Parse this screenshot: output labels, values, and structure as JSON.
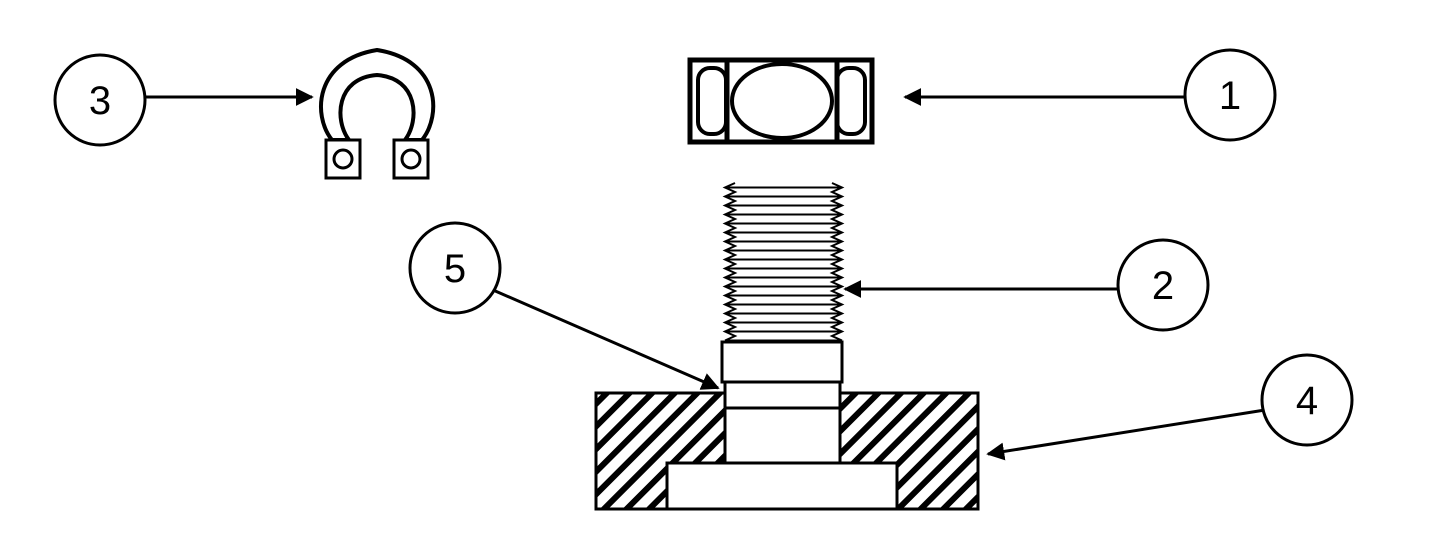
{
  "callouts": [
    {
      "id": "1",
      "label": "1",
      "part": "nut"
    },
    {
      "id": "2",
      "label": "2",
      "part": "threaded-stud"
    },
    {
      "id": "3",
      "label": "3",
      "part": "terminal-clamp"
    },
    {
      "id": "4",
      "label": "4",
      "part": "base-block"
    },
    {
      "id": "5",
      "label": "5",
      "part": "collar"
    }
  ],
  "colors": {
    "stroke": "#000000",
    "background": "#ffffff",
    "hatch": "#000000"
  }
}
